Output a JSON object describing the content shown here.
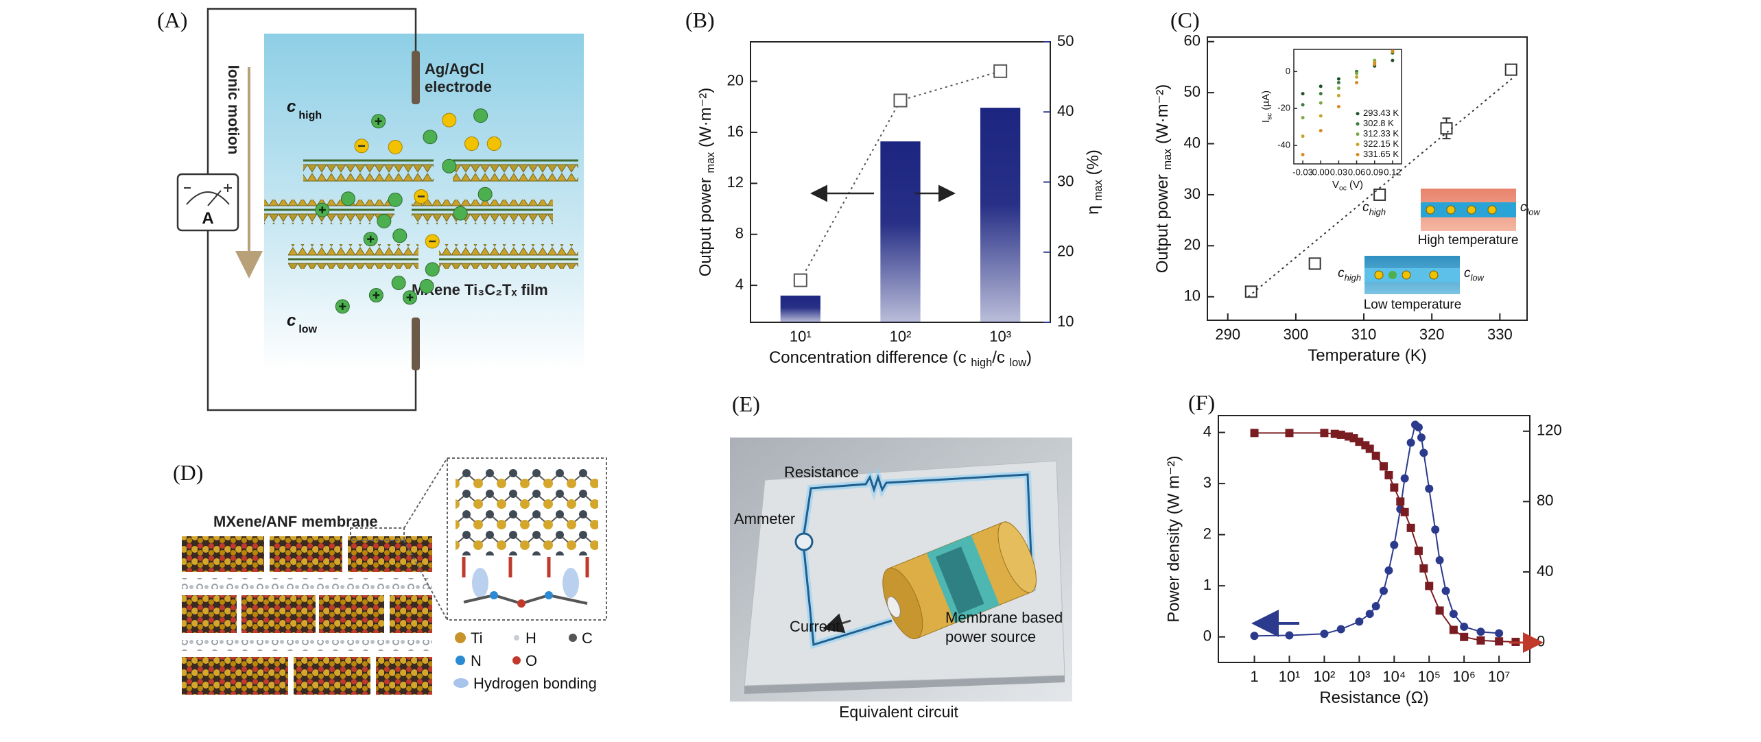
{
  "chart_data": [
    {
      "type": "bar",
      "panel_label": "(B)",
      "categories": [
        "10¹",
        "10²",
        "10³"
      ],
      "xlabel": [
        "Concentration difference (c ",
        "high",
        "/c ",
        "low",
        ")"
      ],
      "ylabel": [
        "Output power ",
        "max",
        " (W·m⁻²)"
      ],
      "y2label": [
        "η ",
        "max",
        " (%)"
      ],
      "y2color": "#2b3a8c",
      "ylim": [
        1.1,
        23.1
      ],
      "yticks": [
        4,
        8,
        12,
        16,
        20
      ],
      "y2lim": [
        10,
        50
      ],
      "y2ticks": [
        10,
        20,
        30,
        40,
        50
      ],
      "series": [
        {
          "type": "bar",
          "axis": "y2",
          "color": "#1c2580",
          "values": [
            13.8,
            35.8,
            40.6
          ]
        },
        {
          "type": "line",
          "marker": "open-square",
          "dash": "dotted",
          "color": "#555555",
          "values": [
            4.4,
            18.5,
            20.8
          ]
        }
      ]
    },
    {
      "type": "scatter",
      "panel_label": "(C)",
      "xlabel": "Temperature (K)",
      "ylabel": [
        "Output power ",
        "max",
        " (W·m⁻²)"
      ],
      "xlim": [
        287,
        334
      ],
      "xticks": [
        290,
        300,
        310,
        320,
        330
      ],
      "ylim": [
        5.4,
        60.9
      ],
      "yticks": [
        10,
        20,
        30,
        40,
        50,
        60
      ],
      "series": [
        {
          "type": "scatter",
          "marker": "open-square",
          "color": "#333333",
          "x": [
            293.43,
            302.8,
            312.33,
            322.15,
            331.65
          ],
          "values": [
            11,
            16.5,
            30,
            43,
            54.5
          ],
          "errors": [
            null,
            null,
            null,
            2,
            null
          ]
        },
        {
          "type": "line",
          "dash": "dotted",
          "color": "#333333",
          "x": [
            293,
            332
          ],
          "values": [
            10,
            53
          ]
        }
      ],
      "annotations": {
        "c_high": [
          "c",
          "high"
        ],
        "c_low": [
          "c",
          "low"
        ],
        "high_temperature": "High temperature",
        "low_temperature": "Low temperature"
      },
      "inset": {
        "xlabel": [
          "V",
          "oc",
          " (V)"
        ],
        "ylabel": [
          "I",
          "sc",
          " (µA)"
        ],
        "xlim": [
          -0.045,
          0.135
        ],
        "xticks": [
          -0.03,
          {
            "value": 0,
            "label": "0.00"
          },
          0.03,
          0.06,
          0.09,
          0.12
        ],
        "ylim": [
          -50,
          12
        ],
        "yticks": [
          -40,
          -20,
          0
        ],
        "x": [
          -0.03,
          0,
          0.03,
          0.06,
          0.09,
          0.12
        ],
        "legend": "lower right",
        "series": [
          {
            "name": "293.43 K",
            "type": "scatter",
            "marker": "circle",
            "color": "#1f4f2a",
            "values": [
              -12,
              -8,
              -4,
              0,
              3,
              6
            ]
          },
          {
            "name": "302.8 K",
            "type": "scatter",
            "marker": "circle",
            "color": "#3d7a3a",
            "values": [
              -18,
              -12,
              -6,
              0,
              5,
              10
            ]
          },
          {
            "name": "312.33 K",
            "type": "scatter",
            "marker": "circle",
            "color": "#7aa845",
            "values": [
              -25,
              -17,
              -9,
              -1,
              6,
              11
            ]
          },
          {
            "name": "322.15 K",
            "type": "scatter",
            "marker": "circle",
            "color": "#c9a227",
            "values": [
              -35,
              -24,
              -13,
              -3,
              5,
              11
            ]
          },
          {
            "name": "331.65 K",
            "type": "scatter",
            "marker": "circle",
            "color": "#d98a1f",
            "values": [
              -45,
              -32,
              -19,
              -6,
              4,
              11
            ]
          }
        ]
      }
    },
    {
      "type": "line",
      "panel_label": "(F)",
      "xlabel": "Resistance (Ω)",
      "ylabel": "Power density (W m⁻²)",
      "log_x": true,
      "xlim": [
        0.093,
        76000000
      ],
      "xticks": [
        1,
        {
          "value": 10,
          "label": "10¹"
        },
        {
          "value": 100,
          "label": "10²"
        },
        {
          "value": 1000,
          "label": "10³"
        },
        {
          "value": 10000,
          "label": "10⁴"
        },
        {
          "value": 100000,
          "label": "10⁵"
        },
        {
          "value": 1000000,
          "label": "10⁶"
        },
        {
          "value": 10000000,
          "label": "10⁷"
        }
      ],
      "ylim": [
        -0.5,
        4.33
      ],
      "yticks": [
        0,
        1,
        2,
        3,
        4
      ],
      "y2lim": [
        -11.5,
        128.9
      ],
      "y2ticks": [
        0,
        40,
        80,
        120
      ],
      "series": [
        {
          "type": "line",
          "marker": "circle",
          "color": "#2b3a8c",
          "x": [
            1,
            10,
            100,
            300,
            1000,
            2000,
            3000,
            5000,
            7000,
            10000,
            15000,
            20000,
            30000,
            40000,
            50000,
            60000,
            70000,
            100000,
            150000,
            200000,
            300000,
            500000,
            1000000,
            3000000,
            10000000
          ],
          "values": [
            0.02,
            0.03,
            0.06,
            0.15,
            0.3,
            0.45,
            0.6,
            0.9,
            1.3,
            1.8,
            2.5,
            3.1,
            3.8,
            4.15,
            4.1,
            3.9,
            3.6,
            2.9,
            2.1,
            1.5,
            0.9,
            0.45,
            0.2,
            0.1,
            0.07
          ]
        },
        {
          "type": "line",
          "marker": "square",
          "axis": "y2",
          "color": "#7a1d22",
          "x": [
            1,
            10,
            100,
            200,
            300,
            500,
            700,
            1000,
            1500,
            2000,
            3000,
            5000,
            7000,
            10000,
            15000,
            20000,
            30000,
            50000,
            70000,
            100000,
            200000,
            500000,
            1000000,
            3000000,
            10000000,
            30000000
          ],
          "values": [
            119,
            119,
            119,
            118.5,
            118,
            117,
            116,
            114,
            112,
            110,
            106,
            100,
            95,
            88,
            80,
            74,
            65,
            52,
            42,
            32,
            18,
            7,
            3,
            1,
            0.5,
            0.2
          ]
        }
      ]
    }
  ],
  "panel_A": {
    "panel_label": "(A)",
    "electrode": [
      "Ag/AgCl",
      "electrode"
    ],
    "ionic_motion": "Ionic motion",
    "meter": "A",
    "c_high": [
      "c",
      "high"
    ],
    "c_low": [
      "c",
      "low"
    ],
    "film": "MXene Ti₃C₂Tₓ film"
  },
  "panel_D": {
    "panel_label": "(D)",
    "title": "MXene/ANF membrane",
    "legend": [
      "Ti",
      "H",
      "C",
      "N",
      "O",
      "Hydrogen bonding"
    ]
  },
  "panel_E": {
    "panel_label": "(E)",
    "labels": {
      "resistance": "Resistance",
      "ammeter": "Ammeter",
      "current": "Current",
      "source": [
        "Membrane based",
        "power source"
      ]
    },
    "caption": "Equivalent circuit"
  }
}
